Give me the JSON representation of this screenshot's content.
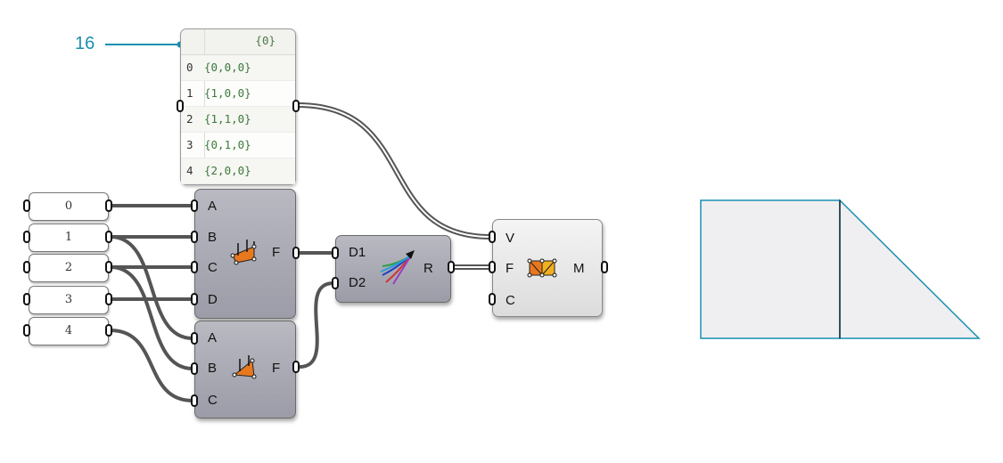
{
  "callout": {
    "label": "16"
  },
  "panel": {
    "header": "{0}",
    "rows": [
      {
        "index": "0",
        "value": "{0,0,0}"
      },
      {
        "index": "1",
        "value": "{1,0,0}"
      },
      {
        "index": "2",
        "value": "{1,1,0}"
      },
      {
        "index": "3",
        "value": "{0,1,0}"
      },
      {
        "index": "4",
        "value": "{2,0,0}"
      }
    ]
  },
  "sliders": [
    "0",
    "1",
    "2",
    "3",
    "4"
  ],
  "quad_face": {
    "inputs": [
      "A",
      "B",
      "C",
      "D"
    ],
    "output": "F"
  },
  "tri_face": {
    "inputs": [
      "A",
      "B",
      "C"
    ],
    "output": "F"
  },
  "merge": {
    "inputs": [
      "D1",
      "D2"
    ],
    "output": "R"
  },
  "mesh": {
    "inputs": [
      "V",
      "F",
      "C"
    ],
    "output": "M"
  },
  "colors": {
    "accent": "#1a8fb0",
    "component": "#a8a8b4",
    "wire": "#555555"
  }
}
